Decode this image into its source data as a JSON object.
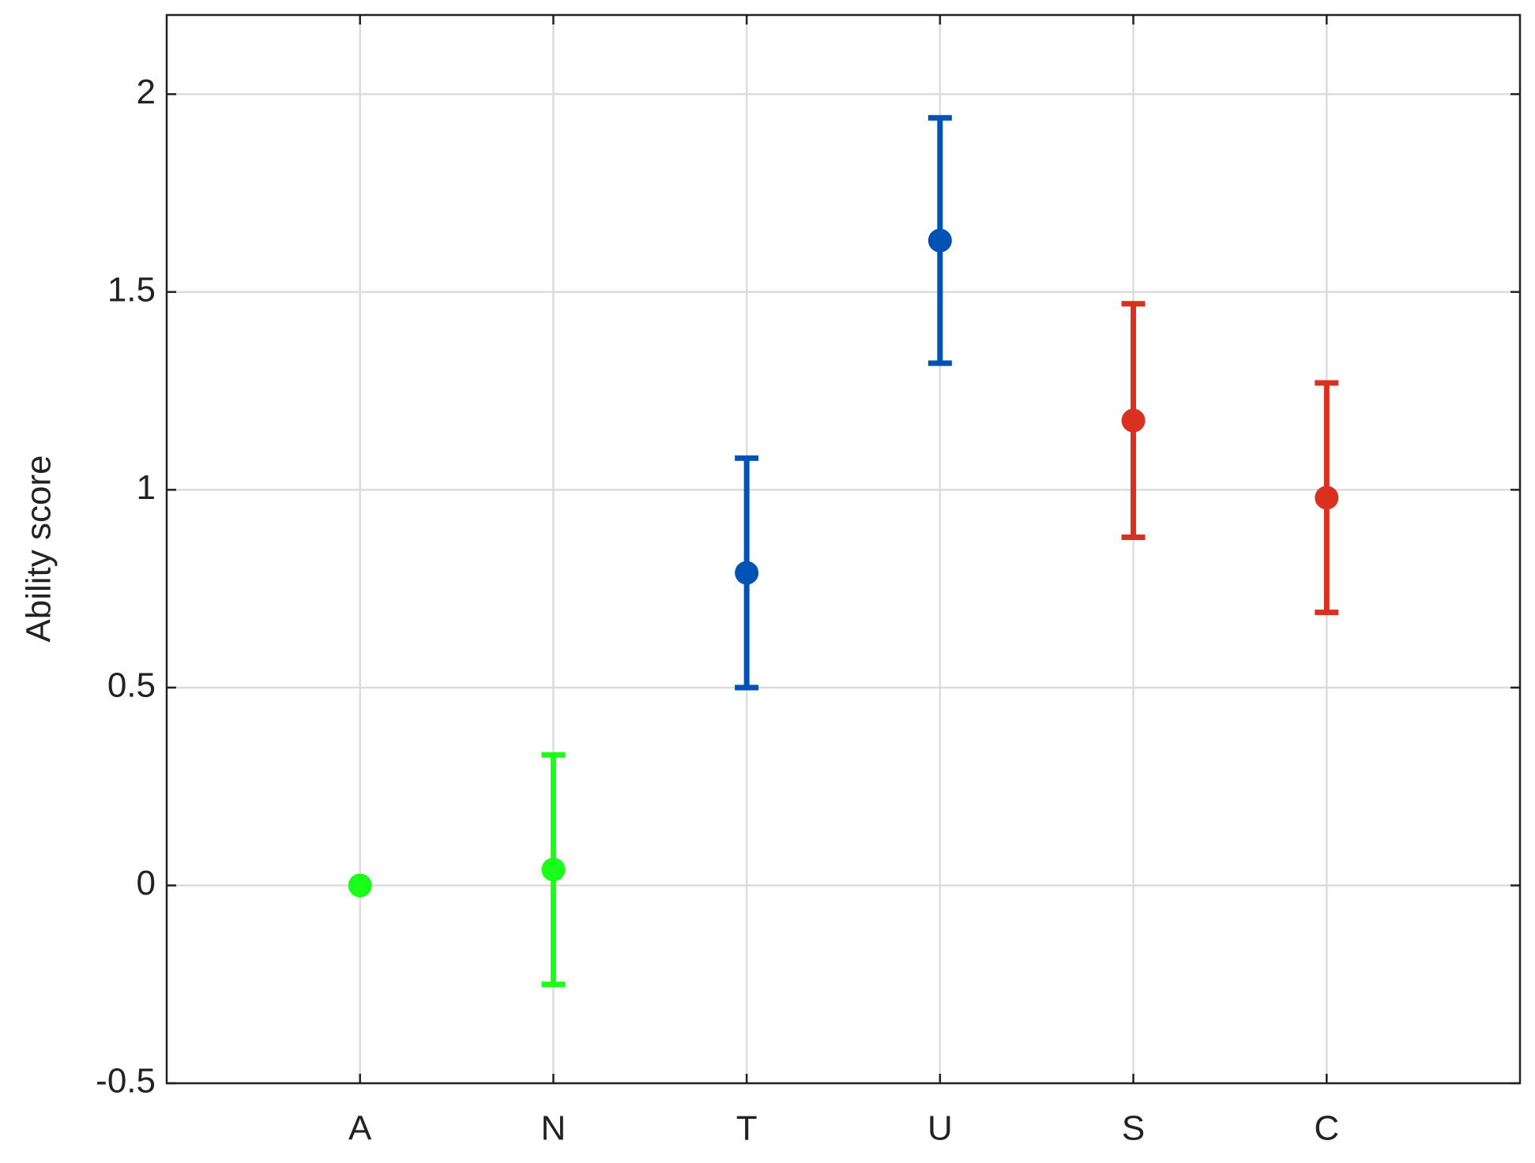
{
  "chart_data": {
    "type": "errorbar",
    "ylabel": "Ability score",
    "categories": [
      "A",
      "N",
      "T",
      "U",
      "S",
      "C"
    ],
    "values": [
      0,
      0.04,
      0.79,
      1.63,
      1.175,
      0.98
    ],
    "errors": [
      null,
      0.29,
      0.29,
      0.31,
      0.295,
      0.29
    ],
    "colors": [
      "#19ff19",
      "#19ff19",
      "#0052b4",
      "#0052b4",
      "#d9301f",
      "#d9301f"
    ],
    "ylim": [
      -0.5,
      2.2
    ],
    "yticks": [
      -0.5,
      0,
      0.5,
      1,
      1.5,
      2
    ],
    "grid": true
  }
}
